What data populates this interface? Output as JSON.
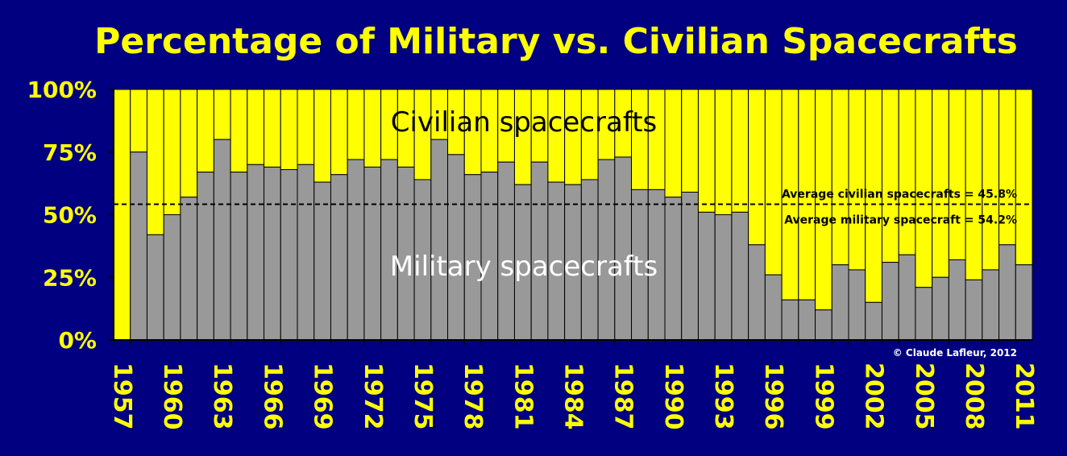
{
  "chart_data": {
    "type": "bar",
    "stacked": true,
    "title": "Percentage of Military vs. Civilian Spacecrafts",
    "x": [
      1957,
      1958,
      1959,
      1960,
      1961,
      1962,
      1963,
      1964,
      1965,
      1966,
      1967,
      1968,
      1969,
      1970,
      1971,
      1972,
      1973,
      1974,
      1975,
      1976,
      1977,
      1978,
      1979,
      1980,
      1981,
      1982,
      1983,
      1984,
      1985,
      1986,
      1987,
      1988,
      1989,
      1990,
      1991,
      1992,
      1993,
      1994,
      1995,
      1996,
      1997,
      1998,
      1999,
      2000,
      2001,
      2002,
      2003,
      2004,
      2005,
      2006,
      2007,
      2008,
      2009,
      2010,
      2011
    ],
    "x_tick_labels": [
      "1957",
      "1960",
      "1963",
      "1966",
      "1969",
      "1972",
      "1975",
      "1978",
      "1981",
      "1984",
      "1987",
      "1990",
      "1993",
      "1996",
      "1999",
      "2002",
      "2005",
      "2008",
      "2011"
    ],
    "y_tick_labels": [
      "0%",
      "25%",
      "50%",
      "75%",
      "100%"
    ],
    "ylim": [
      0,
      100
    ],
    "series": [
      {
        "name": "Military spacecrafts",
        "color": "#999999",
        "values": [
          0,
          75,
          42,
          50,
          57,
          67,
          80,
          67,
          70,
          69,
          68,
          70,
          63,
          66,
          72,
          69,
          72,
          69,
          64,
          80,
          74,
          66,
          67,
          71,
          62,
          71,
          63,
          62,
          64,
          72,
          73,
          60,
          60,
          57,
          59,
          51,
          50,
          51,
          38,
          26,
          16,
          16,
          12,
          30,
          28,
          15,
          31,
          34,
          21,
          25,
          32,
          24,
          28,
          38,
          30
        ]
      },
      {
        "name": "Civilian spacecrafts",
        "color": "#FFFF00",
        "values": [
          100,
          25,
          58,
          50,
          43,
          33,
          20,
          33,
          30,
          31,
          32,
          30,
          37,
          34,
          28,
          31,
          28,
          31,
          36,
          20,
          26,
          34,
          33,
          29,
          38,
          29,
          37,
          38,
          36,
          28,
          27,
          40,
          40,
          43,
          41,
          49,
          50,
          49,
          62,
          74,
          84,
          84,
          88,
          70,
          72,
          85,
          69,
          66,
          79,
          75,
          68,
          76,
          72,
          62,
          70
        ]
      }
    ],
    "average_line": {
      "value": 54.2,
      "label_civilian": "Average civilian spacecrafts = 45.8%",
      "label_military": "Average military spacecraft = 54.2%"
    },
    "copyright": "© Claude Lafleur, 2012",
    "grid": false
  }
}
